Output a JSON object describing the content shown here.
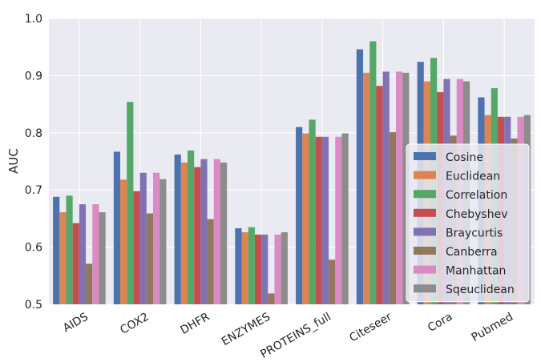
{
  "chart_data": {
    "type": "bar",
    "title": "",
    "xlabel": "",
    "ylabel": "AUC",
    "ylim": [
      0.5,
      1.0
    ],
    "yticks": [
      "0.5",
      "0.6",
      "0.7",
      "0.8",
      "0.9",
      "1.0"
    ],
    "grid": true,
    "legend_position": "lower-right",
    "categories": [
      "AIDS",
      "COX2",
      "DHFR",
      "ENZYMES",
      "PROTEINS_full",
      "Citeseer",
      "Cora",
      "Pubmed"
    ],
    "series": [
      {
        "name": "Cosine",
        "color": "#4c72b0",
        "values": [
          0.688,
          0.767,
          0.762,
          0.633,
          0.81,
          0.946,
          0.924,
          0.862
        ]
      },
      {
        "name": "Euclidean",
        "color": "#dd8452",
        "values": [
          0.661,
          0.718,
          0.748,
          0.626,
          0.799,
          0.905,
          0.89,
          0.831
        ]
      },
      {
        "name": "Correlation",
        "color": "#55a868",
        "values": [
          0.69,
          0.854,
          0.769,
          0.635,
          0.823,
          0.96,
          0.931,
          0.878
        ]
      },
      {
        "name": "Chebyshev",
        "color": "#c44e52",
        "values": [
          0.642,
          0.698,
          0.74,
          0.622,
          0.793,
          0.882,
          0.871,
          0.828
        ]
      },
      {
        "name": "Braycurtis",
        "color": "#8172b3",
        "values": [
          0.675,
          0.73,
          0.754,
          0.622,
          0.793,
          0.907,
          0.894,
          0.828
        ]
      },
      {
        "name": "Canberra",
        "color": "#937860",
        "values": [
          0.571,
          0.659,
          0.649,
          0.519,
          0.578,
          0.801,
          0.795,
          0.79
        ]
      },
      {
        "name": "Manhattan",
        "color": "#da8bc3",
        "values": [
          0.675,
          0.73,
          0.754,
          0.622,
          0.793,
          0.907,
          0.894,
          0.828
        ]
      },
      {
        "name": "Sqeuclidean",
        "color": "#8c8c8c",
        "values": [
          0.661,
          0.719,
          0.748,
          0.626,
          0.799,
          0.905,
          0.89,
          0.831
        ]
      }
    ]
  }
}
